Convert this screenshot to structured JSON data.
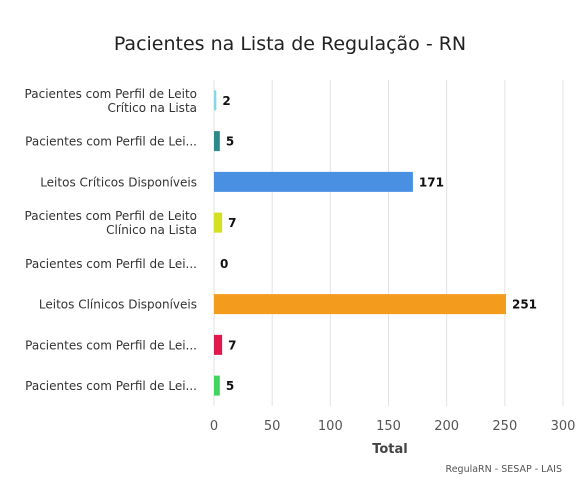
{
  "chart_data": {
    "type": "bar",
    "orientation": "horizontal",
    "title": "Pacientes na Lista de Regulação - RN",
    "xlabel": "Total",
    "ylabel": "",
    "xlim": [
      0,
      300
    ],
    "xticks": [
      0,
      50,
      100,
      150,
      200,
      250,
      300
    ],
    "grid": true,
    "legend": "none",
    "credits": "RegulaRN - SESAP - LAIS",
    "categories": [
      [
        "Pacientes com Perfil de Leito",
        "Crítico na Lista"
      ],
      [
        "Pacientes com Perfil de Lei..."
      ],
      [
        "Leitos Críticos Disponíveis"
      ],
      [
        "Pacientes com Perfil de Leito",
        "Clínico na Lista"
      ],
      [
        "Pacientes com Perfil de Lei..."
      ],
      [
        "Leitos Clínicos Disponíveis"
      ],
      [
        "Pacientes com Perfil de Lei..."
      ],
      [
        "Pacientes com Perfil de Lei..."
      ]
    ],
    "values": [
      2,
      5,
      171,
      7,
      0,
      251,
      7,
      5
    ],
    "colors": [
      "#88d7e8",
      "#2e8a8a",
      "#4a90e2",
      "#d4e021",
      "#555555",
      "#f29b1d",
      "#e0194f",
      "#43d460"
    ]
  }
}
